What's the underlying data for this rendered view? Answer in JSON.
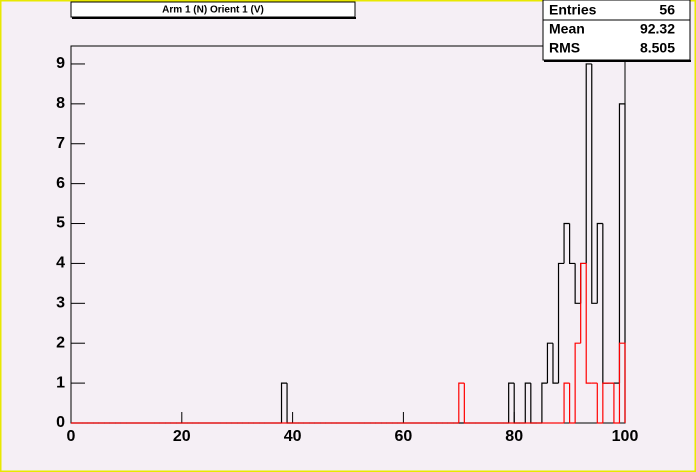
{
  "chart_data": {
    "type": "histogram",
    "title": "Arm 1 (N) Orient 1 (V)",
    "bins": [
      0,
      1,
      2,
      3,
      4,
      5,
      6,
      7,
      8,
      9,
      10,
      11,
      12,
      13,
      14,
      15,
      16,
      17,
      18,
      19,
      20,
      21,
      22,
      23,
      24,
      25,
      26,
      27,
      28,
      29,
      30,
      31,
      32,
      33,
      34,
      35,
      36,
      37,
      38,
      39,
      40,
      41,
      42,
      43,
      44,
      45,
      46,
      47,
      48,
      49,
      50,
      51,
      52,
      53,
      54,
      55,
      56,
      57,
      58,
      59,
      60,
      61,
      62,
      63,
      64,
      65,
      66,
      67,
      68,
      69,
      70,
      71,
      72,
      73,
      74,
      75,
      76,
      77,
      78,
      79,
      80,
      81,
      82,
      83,
      84,
      85,
      86,
      87,
      88,
      89,
      90,
      91,
      92,
      93,
      94,
      95,
      96,
      97,
      98,
      99,
      100
    ],
    "series": [
      {
        "color": "#000000",
        "values": [
          0,
          0,
          0,
          0,
          0,
          0,
          0,
          0,
          0,
          0,
          0,
          0,
          0,
          0,
          0,
          0,
          0,
          0,
          0,
          0,
          0,
          0,
          0,
          0,
          0,
          0,
          0,
          0,
          0,
          0,
          0,
          0,
          0,
          0,
          0,
          0,
          0,
          0,
          1,
          0,
          0,
          0,
          0,
          0,
          0,
          0,
          0,
          0,
          0,
          0,
          0,
          0,
          0,
          0,
          0,
          0,
          0,
          0,
          0,
          0,
          0,
          0,
          0,
          0,
          0,
          0,
          0,
          0,
          0,
          0,
          0,
          0,
          0,
          0,
          0,
          0,
          0,
          0,
          0,
          1,
          0,
          0,
          1,
          0,
          0,
          1,
          2,
          1,
          4,
          5,
          4,
          3,
          4,
          9,
          3,
          5,
          1,
          1,
          1,
          8
        ]
      },
      {
        "color": "#ff0000",
        "values": [
          0,
          0,
          0,
          0,
          0,
          0,
          0,
          0,
          0,
          0,
          0,
          0,
          0,
          0,
          0,
          0,
          0,
          0,
          0,
          0,
          0,
          0,
          0,
          0,
          0,
          0,
          0,
          0,
          0,
          0,
          0,
          0,
          0,
          0,
          0,
          0,
          0,
          0,
          0,
          0,
          0,
          0,
          0,
          0,
          0,
          0,
          0,
          0,
          0,
          0,
          0,
          0,
          0,
          0,
          0,
          0,
          0,
          0,
          0,
          0,
          0,
          0,
          0,
          0,
          0,
          0,
          0,
          0,
          0,
          0,
          1,
          0,
          0,
          0,
          0,
          0,
          0,
          0,
          0,
          0,
          0,
          0,
          0,
          0,
          0,
          0,
          0,
          0,
          0,
          1,
          0,
          2,
          4,
          1,
          1,
          0,
          1,
          1,
          0,
          2
        ]
      }
    ],
    "xlim": [
      0,
      100
    ],
    "xticks": [
      0,
      20,
      40,
      60,
      80,
      100
    ],
    "ylim": [
      0,
      9.45
    ],
    "yticks": [
      0,
      1,
      2,
      3,
      4,
      5,
      6,
      7,
      8,
      9
    ],
    "stats": [
      {
        "label": "Entries",
        "value": 56
      },
      {
        "label": "Mean",
        "value": 92.32
      },
      {
        "label": "RMS",
        "value": 8.505
      }
    ]
  }
}
